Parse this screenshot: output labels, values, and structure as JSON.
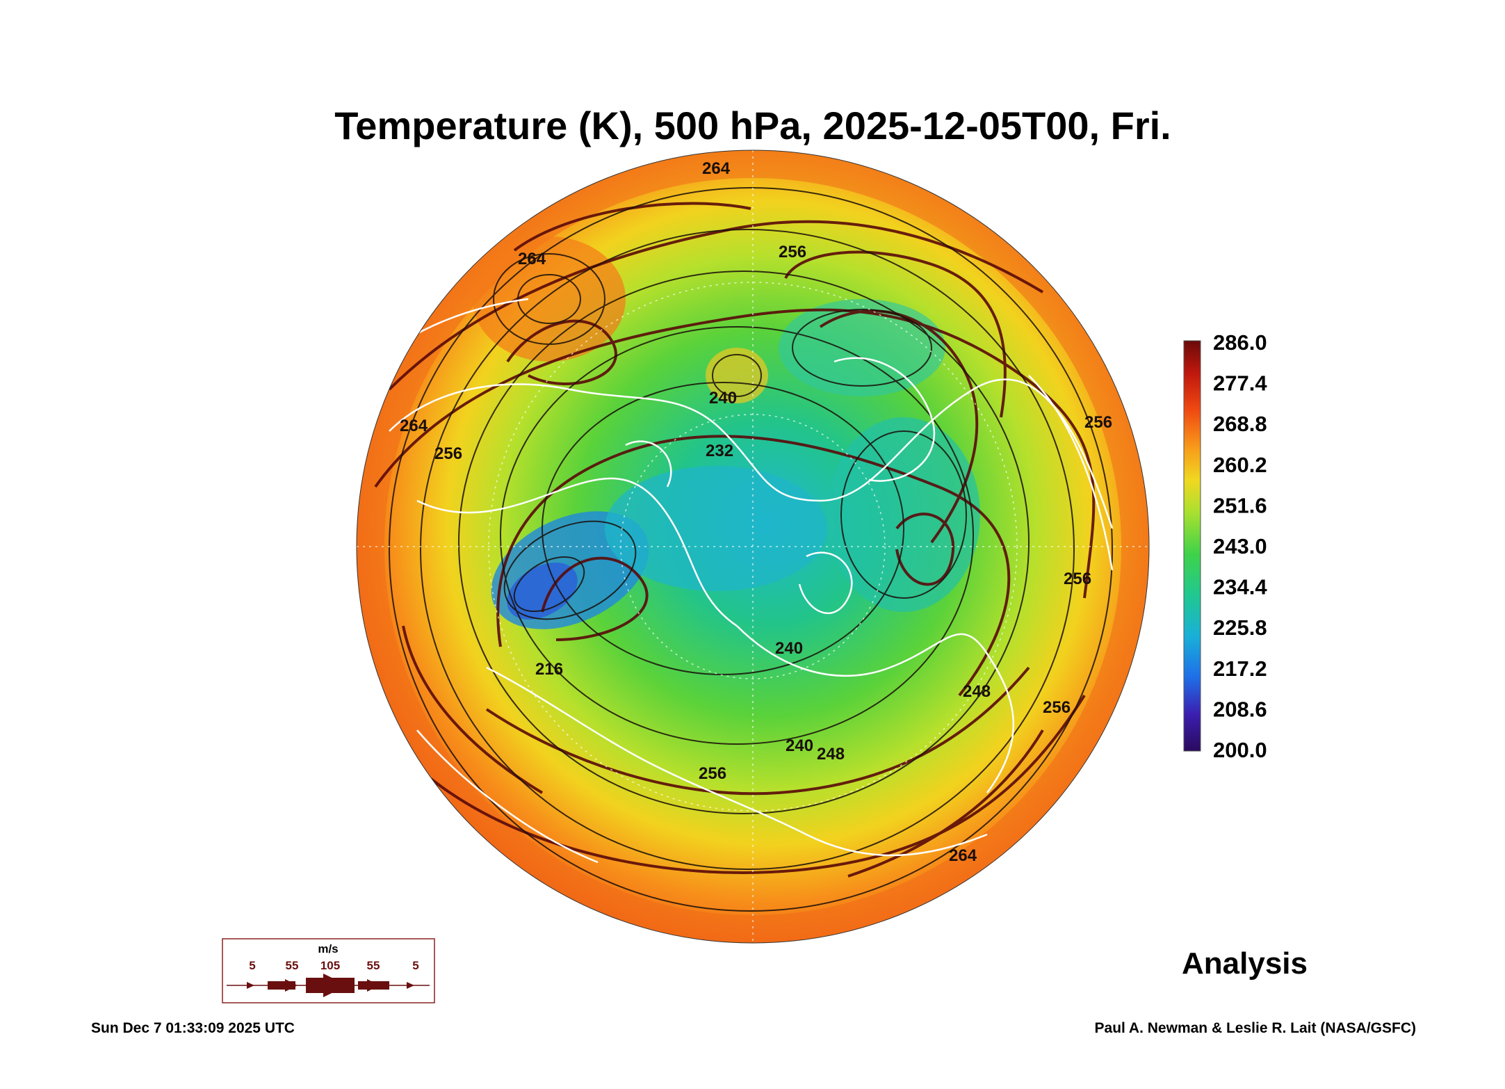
{
  "title": "Temperature (K), 500 hPa, 2025-12-05T00, Fri.",
  "label_analysis": "Analysis",
  "timestamp": "Sun Dec  7 01:33:09 2025 UTC",
  "credit": "Paul A. Newman & Leslie R. Lait (NASA/GSFC)",
  "colorbar": {
    "ticks": [
      "286.0",
      "277.4",
      "268.8",
      "260.2",
      "251.6",
      "243.0",
      "234.4",
      "225.8",
      "217.2",
      "208.6",
      "200.0"
    ],
    "colors": [
      "#2a0a5e",
      "#3b1fb0",
      "#1f6fe8",
      "#19b0d8",
      "#20c890",
      "#3fd24a",
      "#a8e030",
      "#f0d820",
      "#f89a1a",
      "#f04a12",
      "#c0180e",
      "#6a0a0a"
    ]
  },
  "wind_scale": {
    "unit": "m/s",
    "labels": [
      "5",
      "55",
      "105",
      "55",
      "5"
    ],
    "color": "#6a0f0f"
  },
  "map": {
    "contour_labels": [
      "264",
      "264",
      "256",
      "264",
      "256",
      "240",
      "232",
      "240",
      "248",
      "256",
      "256",
      "256",
      "264",
      "240",
      "216",
      "256",
      "248"
    ],
    "colors": {
      "land_outline": "#ffffff",
      "contour": "#1a0f0a",
      "streamline": "#5a0a0a"
    }
  }
}
